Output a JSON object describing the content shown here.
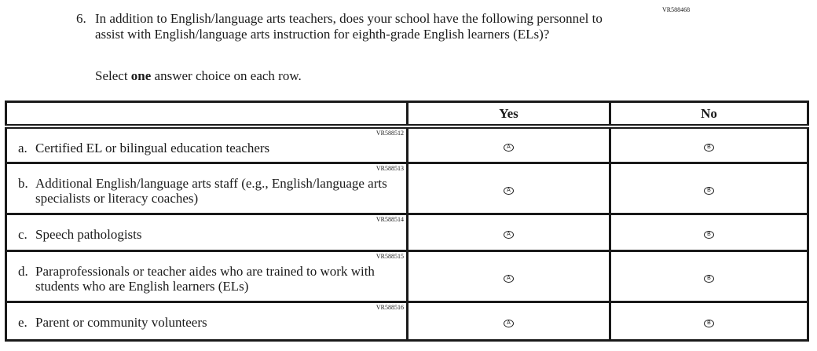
{
  "question": {
    "id": "VR588468",
    "number": "6.",
    "text": "In addition to English/language arts teachers, does your school have the following personnel to assist with English/language arts instruction for eighth-grade English learners (ELs)?",
    "instruction_pre": "Select ",
    "instruction_bold": "one",
    "instruction_post": " answer choice on each row."
  },
  "table": {
    "headers": [
      "",
      "Yes",
      "No"
    ],
    "options": [
      "A",
      "B"
    ],
    "rows": [
      {
        "id": "VR588512",
        "letter": "a.",
        "text": "Certified EL or bilingual education teachers"
      },
      {
        "id": "VR588513",
        "letter": "b.",
        "text": "Additional English/language arts staff (e.g., English/language arts specialists or literacy coaches)"
      },
      {
        "id": "VR588514",
        "letter": "c.",
        "text": "Speech pathologists"
      },
      {
        "id": "VR588515",
        "letter": "d.",
        "text": "Paraprofessionals or teacher aides who are trained to work with students who are English learners (ELs)"
      },
      {
        "id": "VR588516",
        "letter": "e.",
        "text": "Parent or community volunteers"
      }
    ]
  }
}
